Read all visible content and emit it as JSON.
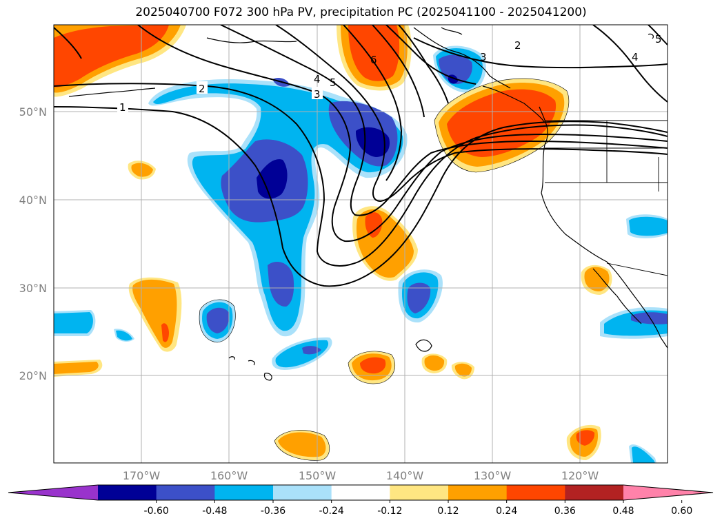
{
  "title": "2025040700 F072 300 hPa PV, precipitation PC (2025041100 - 2025041200)",
  "map": {
    "lat_labels": [
      "50°N",
      "40°N",
      "30°N",
      "20°N"
    ],
    "lon_labels": [
      "170°W",
      "160°W",
      "150°W",
      "140°W",
      "130°W",
      "120°W"
    ],
    "grid": true
  },
  "pv_contour_labels": [
    "1",
    "2",
    "3",
    "4",
    "5",
    "6",
    "2",
    "3",
    "4",
    "5"
  ],
  "colorbar": {
    "orientation": "horizontal",
    "extend": "both",
    "tick_labels": [
      "-0.60",
      "-0.48",
      "-0.36",
      "-0.24",
      "-0.12",
      "0.12",
      "0.24",
      "0.36",
      "0.48",
      "0.60"
    ],
    "colors": [
      "#9933cc",
      "#000096",
      "#3c50c8",
      "#00b4f0",
      "#aae1fa",
      "#ffffff",
      "#ffe682",
      "#ffa000",
      "#ff4600",
      "#b22222",
      "#ff82aa"
    ]
  }
}
